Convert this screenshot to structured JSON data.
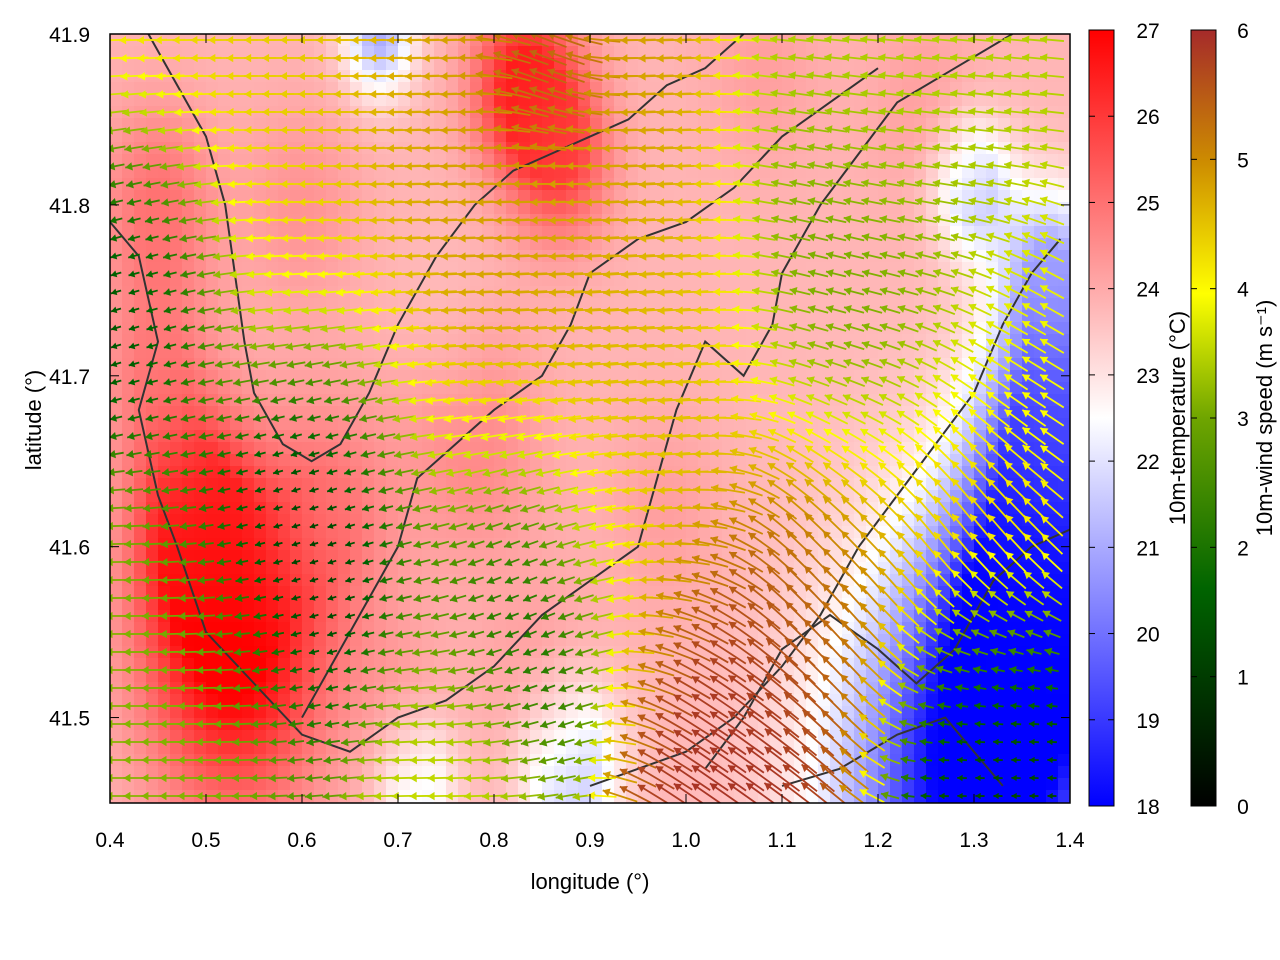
{
  "chart_data": {
    "type": "heatmap",
    "title": "",
    "xlabel": "longitude (°)",
    "ylabel": "latitude (°)",
    "xlim": [
      0.4,
      1.4
    ],
    "ylim": [
      41.45,
      41.9
    ],
    "x_ticks": [
      "0.4",
      "0.5",
      "0.6",
      "0.7",
      "0.8",
      "0.9",
      "1.0",
      "1.1",
      "1.2",
      "1.3",
      "1.4"
    ],
    "y_ticks": [
      "41.5",
      "41.6",
      "41.7",
      "41.8",
      "41.9"
    ],
    "x_tick_values": [
      0.4,
      0.5,
      0.6,
      0.7,
      0.8,
      0.9,
      1.0,
      1.1,
      1.2,
      1.3,
      1.4
    ],
    "y_tick_values": [
      41.5,
      41.6,
      41.7,
      41.8,
      41.9
    ],
    "grid": false,
    "legend": "none",
    "temperature_colorbar": {
      "label": "10m-temperature (°C)",
      "range": [
        18,
        27
      ],
      "ticks": [
        "18",
        "19",
        "20",
        "21",
        "22",
        "23",
        "24",
        "25",
        "26",
        "27"
      ],
      "tick_values": [
        18,
        19,
        20,
        21,
        22,
        23,
        24,
        25,
        26,
        27
      ],
      "colors": [
        "#0000ff",
        "#ffffff",
        "#ff0000"
      ]
    },
    "wind_colorbar": {
      "label": "10m-wind speed (m s⁻¹)",
      "range": [
        0,
        6
      ],
      "ticks": [
        "0",
        "1",
        "2",
        "3",
        "4",
        "5",
        "6"
      ],
      "tick_values": [
        0,
        1,
        2,
        3,
        4,
        5,
        6
      ],
      "colors": [
        "#000000",
        "#006400",
        "#6fa500",
        "#ffff00",
        "#cd8c00",
        "#a52a2a"
      ]
    },
    "temperature_anomalies": [
      {
        "lon": 0.53,
        "lat": 41.54,
        "t": 27.2,
        "r": 0.09
      },
      {
        "lon": 0.49,
        "lat": 41.61,
        "t": 26.5,
        "r": 0.06
      },
      {
        "lon": 0.83,
        "lat": 41.87,
        "t": 26.6,
        "r": 0.05
      },
      {
        "lon": 0.87,
        "lat": 41.83,
        "t": 25.8,
        "r": 0.05
      },
      {
        "lon": 0.45,
        "lat": 41.8,
        "t": 25.0,
        "r": 0.06
      },
      {
        "lon": 0.63,
        "lat": 41.62,
        "t": 24.8,
        "r": 0.07
      },
      {
        "lon": 0.78,
        "lat": 41.66,
        "t": 24.6,
        "r": 0.07
      },
      {
        "lon": 0.98,
        "lat": 41.62,
        "t": 24.2,
        "r": 0.06
      },
      {
        "lon": 0.6,
        "lat": 41.8,
        "t": 24.4,
        "r": 0.06
      },
      {
        "lon": 0.45,
        "lat": 41.7,
        "t": 24.8,
        "r": 0.06
      },
      {
        "lon": 0.7,
        "lat": 41.51,
        "t": 24.2,
        "r": 0.05
      },
      {
        "lon": 0.85,
        "lat": 41.52,
        "t": 24.3,
        "r": 0.06
      },
      {
        "lon": 1.08,
        "lat": 41.88,
        "t": 24.2,
        "r": 0.06
      },
      {
        "lon": 1.25,
        "lat": 41.86,
        "t": 24.2,
        "r": 0.06
      },
      {
        "lon": 0.75,
        "lat": 41.73,
        "t": 23.6,
        "r": 0.05
      },
      {
        "lon": 1.3,
        "lat": 41.45,
        "t": 18.0,
        "r": 0.14
      },
      {
        "lon": 1.36,
        "lat": 41.56,
        "t": 18.0,
        "r": 0.09
      },
      {
        "lon": 1.38,
        "lat": 41.67,
        "t": 19.5,
        "r": 0.07
      },
      {
        "lon": 1.38,
        "lat": 41.76,
        "t": 21.0,
        "r": 0.05
      },
      {
        "lon": 0.88,
        "lat": 41.47,
        "t": 21.2,
        "r": 0.05
      },
      {
        "lon": 0.68,
        "lat": 41.9,
        "t": 21.0,
        "r": 0.035
      },
      {
        "lon": 1.3,
        "lat": 41.81,
        "t": 21.5,
        "r": 0.04
      },
      {
        "lon": 0.72,
        "lat": 41.46,
        "t": 22.0,
        "r": 0.04
      }
    ],
    "wind_regions": [
      {
        "lon": 0.55,
        "lat": 41.83,
        "speed": 4.1,
        "dir_deg": 180,
        "r": 0.12
      },
      {
        "lon": 0.8,
        "lat": 41.75,
        "speed": 4.6,
        "dir_deg": 182,
        "r": 0.15
      },
      {
        "lon": 0.95,
        "lat": 41.66,
        "speed": 4.2,
        "dir_deg": 185,
        "r": 0.1
      },
      {
        "lon": 0.62,
        "lat": 41.62,
        "speed": 0.3,
        "dir_deg": 200,
        "r": 0.1
      },
      {
        "lon": 0.83,
        "lat": 41.58,
        "speed": 0.6,
        "dir_deg": 210,
        "r": 0.08
      },
      {
        "lon": 0.45,
        "lat": 41.76,
        "speed": 0.4,
        "dir_deg": 200,
        "r": 0.07
      },
      {
        "lon": 0.48,
        "lat": 41.5,
        "speed": 2.6,
        "dir_deg": 180,
        "r": 0.1
      },
      {
        "lon": 1.05,
        "lat": 41.5,
        "speed": 5.9,
        "dir_deg": 145,
        "r": 0.08
      },
      {
        "lon": 1.15,
        "lat": 41.58,
        "speed": 5.3,
        "dir_deg": 130,
        "r": 0.08
      },
      {
        "lon": 1.28,
        "lat": 41.62,
        "speed": 4.4,
        "dir_deg": 120,
        "r": 0.08
      },
      {
        "lon": 1.3,
        "lat": 41.5,
        "speed": 0.8,
        "dir_deg": 180,
        "r": 0.07
      },
      {
        "lon": 1.2,
        "lat": 41.73,
        "speed": 2.4,
        "dir_deg": 165,
        "r": 0.1
      },
      {
        "lon": 1.25,
        "lat": 41.88,
        "speed": 3.0,
        "dir_deg": 175,
        "r": 0.1
      },
      {
        "lon": 0.85,
        "lat": 41.88,
        "speed": 5.5,
        "dir_deg": 150,
        "r": 0.04
      },
      {
        "lon": 1.35,
        "lat": 41.7,
        "speed": 3.5,
        "dir_deg": 150,
        "r": 0.07
      },
      {
        "lon": 0.75,
        "lat": 41.47,
        "speed": 3.2,
        "dir_deg": 180,
        "r": 0.08
      }
    ],
    "contours": [
      [
        [
          0.4,
          41.79
        ],
        [
          0.43,
          41.77
        ],
        [
          0.45,
          41.72
        ],
        [
          0.43,
          41.68
        ],
        [
          0.45,
          41.63
        ],
        [
          0.47,
          41.6
        ],
        [
          0.5,
          41.55
        ],
        [
          0.55,
          41.52
        ],
        [
          0.6,
          41.49
        ],
        [
          0.65,
          41.48
        ],
        [
          0.7,
          41.5
        ],
        [
          0.75,
          41.51
        ],
        [
          0.8,
          41.53
        ],
        [
          0.85,
          41.56
        ],
        [
          0.9,
          41.58
        ],
        [
          0.95,
          41.6
        ],
        [
          0.97,
          41.64
        ],
        [
          0.99,
          41.68
        ],
        [
          1.02,
          41.72
        ],
        [
          1.06,
          41.7
        ],
        [
          1.09,
          41.73
        ],
        [
          1.1,
          41.76
        ],
        [
          1.14,
          41.8
        ],
        [
          1.18,
          41.83
        ],
        [
          1.22,
          41.86
        ],
        [
          1.28,
          41.88
        ],
        [
          1.34,
          41.9
        ]
      ],
      [
        [
          0.44,
          41.9
        ],
        [
          0.47,
          41.87
        ],
        [
          0.5,
          41.84
        ],
        [
          0.52,
          41.8
        ],
        [
          0.53,
          41.76
        ],
        [
          0.54,
          41.72
        ],
        [
          0.55,
          41.69
        ],
        [
          0.58,
          41.66
        ],
        [
          0.61,
          41.65
        ],
        [
          0.64,
          41.66
        ],
        [
          0.67,
          41.69
        ],
        [
          0.7,
          41.73
        ],
        [
          0.74,
          41.77
        ],
        [
          0.78,
          41.8
        ],
        [
          0.82,
          41.82
        ],
        [
          0.86,
          41.83
        ],
        [
          0.9,
          41.84
        ],
        [
          0.94,
          41.85
        ],
        [
          0.98,
          41.87
        ],
        [
          1.02,
          41.88
        ],
        [
          1.06,
          41.9
        ]
      ],
      [
        [
          0.6,
          41.5
        ],
        [
          0.65,
          41.55
        ],
        [
          0.7,
          41.6
        ],
        [
          0.72,
          41.64
        ],
        [
          0.76,
          41.66
        ],
        [
          0.8,
          41.68
        ],
        [
          0.85,
          41.7
        ],
        [
          0.88,
          41.73
        ],
        [
          0.9,
          41.76
        ],
        [
          0.95,
          41.78
        ],
        [
          1.0,
          41.79
        ],
        [
          1.05,
          41.81
        ],
        [
          1.1,
          41.84
        ],
        [
          1.15,
          41.86
        ],
        [
          1.2,
          41.88
        ]
      ],
      [
        [
          0.9,
          41.46
        ],
        [
          0.95,
          41.47
        ],
        [
          1.0,
          41.48
        ],
        [
          1.05,
          41.5
        ],
        [
          1.1,
          41.53
        ],
        [
          1.14,
          41.56
        ],
        [
          1.18,
          41.6
        ],
        [
          1.22,
          41.63
        ],
        [
          1.26,
          41.66
        ],
        [
          1.3,
          41.69
        ],
        [
          1.33,
          41.73
        ],
        [
          1.36,
          41.76
        ],
        [
          1.39,
          41.78
        ]
      ],
      [
        [
          1.02,
          41.47
        ],
        [
          1.06,
          41.5
        ],
        [
          1.1,
          41.54
        ],
        [
          1.15,
          41.56
        ],
        [
          1.2,
          41.54
        ],
        [
          1.24,
          41.52
        ],
        [
          1.28,
          41.54
        ],
        [
          1.32,
          41.58
        ],
        [
          1.36,
          41.6
        ],
        [
          1.4,
          41.61
        ]
      ],
      [
        [
          1.1,
          41.46
        ],
        [
          1.16,
          41.47
        ],
        [
          1.22,
          41.49
        ],
        [
          1.27,
          41.5
        ],
        [
          1.3,
          41.48
        ],
        [
          1.33,
          41.46
        ]
      ]
    ]
  }
}
